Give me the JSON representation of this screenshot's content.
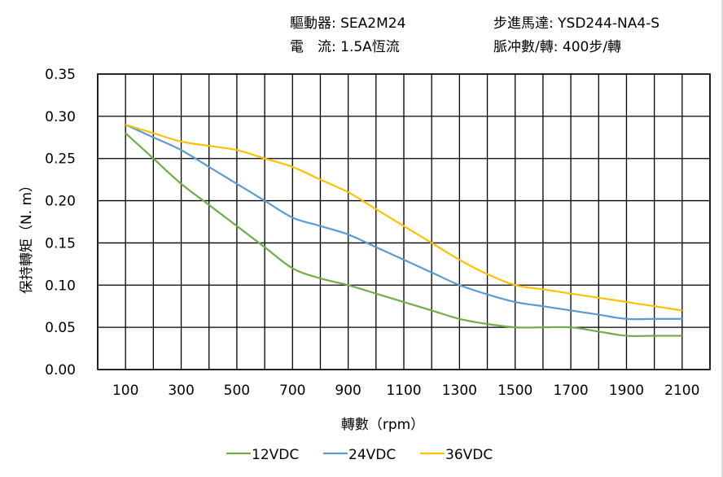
{
  "header": {
    "driver_label": "驅動器:",
    "driver_value": "SEA2M24",
    "current_label": "電　流:",
    "current_value": "1.5A恆流",
    "motor_label": "步進馬達:",
    "motor_value": "YSD244-NA4-S",
    "pulse_label": "脈冲數/轉:",
    "pulse_value": "400步/轉"
  },
  "chart_data": {
    "type": "line",
    "title": "",
    "xlabel": "轉數（rpm）",
    "ylabel": "保持轉矩（N. m）",
    "xlim": [
      0,
      2200
    ],
    "ylim": [
      0,
      0.35
    ],
    "grid": true,
    "legend_position": "bottom",
    "x_tick_labels": [
      "100",
      "300",
      "500",
      "700",
      "900",
      "1100",
      "1300",
      "1500",
      "1700",
      "1900",
      "2100"
    ],
    "y_tick_labels": [
      "0.00",
      "0.05",
      "0.10",
      "0.15",
      "0.20",
      "0.25",
      "0.30",
      "0.35"
    ],
    "x": [
      100,
      200,
      300,
      400,
      500,
      600,
      700,
      800,
      900,
      1000,
      1100,
      1200,
      1300,
      1400,
      1500,
      1600,
      1700,
      1800,
      1900,
      2000,
      2100
    ],
    "series": [
      {
        "name": "12VDC",
        "color": "#70ad47",
        "values": [
          0.28,
          0.25,
          0.22,
          0.195,
          0.17,
          0.145,
          0.12,
          0.108,
          0.1,
          0.09,
          0.08,
          0.07,
          0.06,
          0.054,
          0.05,
          0.05,
          0.05,
          0.045,
          0.04,
          0.04,
          0.04
        ]
      },
      {
        "name": "24VDC",
        "color": "#5b9bd5",
        "values": [
          0.29,
          0.275,
          0.26,
          0.24,
          0.22,
          0.2,
          0.18,
          0.17,
          0.16,
          0.145,
          0.13,
          0.115,
          0.1,
          0.089,
          0.08,
          0.075,
          0.07,
          0.065,
          0.06,
          0.06,
          0.06
        ]
      },
      {
        "name": "36VDC",
        "color": "#ffc000",
        "values": [
          0.29,
          0.28,
          0.27,
          0.265,
          0.26,
          0.25,
          0.24,
          0.225,
          0.21,
          0.19,
          0.17,
          0.15,
          0.13,
          0.113,
          0.1,
          0.095,
          0.09,
          0.085,
          0.08,
          0.075,
          0.07
        ]
      }
    ]
  }
}
